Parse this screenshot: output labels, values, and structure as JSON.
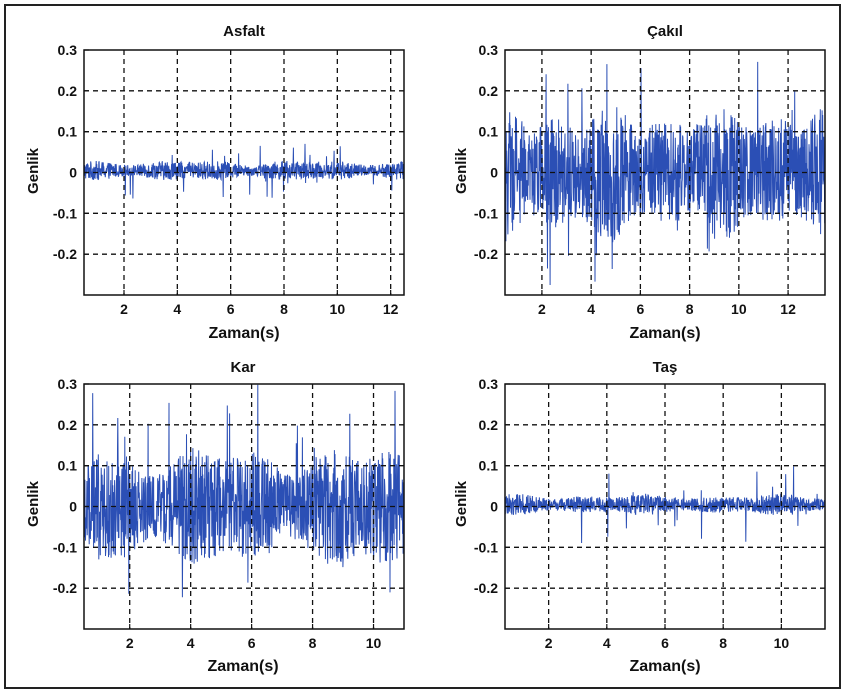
{
  "figure": {
    "signal_color": "#2b4fb5"
  },
  "chart_data": [
    {
      "type": "line",
      "title": "Asfalt",
      "xlabel": "Zaman(s)",
      "ylabel": "Genlik",
      "xlim": [
        0.5,
        12.5
      ],
      "ylim": [
        -0.3,
        0.3
      ],
      "xticks": [
        2,
        4,
        6,
        8,
        10,
        12
      ],
      "yticks": [
        0.3,
        0.2,
        0.1,
        0,
        -0.1,
        -0.2
      ],
      "grid": true,
      "grid_x": [
        2,
        4,
        6,
        8,
        10,
        12
      ],
      "grid_y": [
        0.2,
        0.1,
        0,
        -0.1,
        -0.2
      ],
      "series": [
        {
          "envelope_amplitude": 0.025,
          "peak_amplitude": 0.07,
          "mean": 0.005
        }
      ]
    },
    {
      "type": "line",
      "title": "Çakıl",
      "xlabel": "Zaman(s)",
      "ylabel": "Genlik",
      "xlim": [
        0.5,
        13.5
      ],
      "ylim": [
        -0.3,
        0.3
      ],
      "xticks": [
        2,
        4,
        6,
        8,
        10,
        12
      ],
      "yticks": [
        0.3,
        0.2,
        0.1,
        0,
        -0.1,
        -0.2
      ],
      "grid": true,
      "grid_x": [
        2,
        4,
        6,
        8,
        10,
        12
      ],
      "grid_y": [
        0.2,
        0.1,
        0,
        -0.1,
        -0.2
      ],
      "series": [
        {
          "envelope_amplitude": 0.17,
          "peak_amplitude": 0.28,
          "mean": 0.0
        }
      ]
    },
    {
      "type": "line",
      "title": "Kar",
      "xlabel": "Zaman(s)",
      "ylabel": "Genlik",
      "xlim": [
        0.5,
        11.0
      ],
      "ylim": [
        -0.3,
        0.3
      ],
      "xticks": [
        2,
        4,
        6,
        8,
        10
      ],
      "yticks": [
        0.3,
        0.2,
        0.1,
        0,
        -0.1,
        -0.2
      ],
      "grid": true,
      "grid_x": [
        2,
        4,
        6,
        8,
        10
      ],
      "grid_y": [
        0.2,
        0.1,
        0,
        -0.1,
        -0.2
      ],
      "series": [
        {
          "envelope_amplitude": 0.15,
          "peak_amplitude": 0.3,
          "mean": 0.0
        }
      ]
    },
    {
      "type": "line",
      "title": "Taş",
      "xlabel": "Zaman(s)",
      "ylabel": "Genlik",
      "xlim": [
        0.5,
        11.5
      ],
      "ylim": [
        -0.3,
        0.3
      ],
      "xticks": [
        2,
        4,
        6,
        8,
        10
      ],
      "yticks": [
        0.3,
        0.2,
        0.1,
        0,
        -0.1,
        -0.2
      ],
      "grid": true,
      "grid_x": [
        2,
        4,
        6,
        8,
        10
      ],
      "grid_y": [
        0.2,
        0.1,
        0,
        -0.1,
        -0.2
      ],
      "series": [
        {
          "envelope_amplitude": 0.025,
          "peak_amplitude": 0.1,
          "mean": 0.005
        }
      ]
    }
  ]
}
